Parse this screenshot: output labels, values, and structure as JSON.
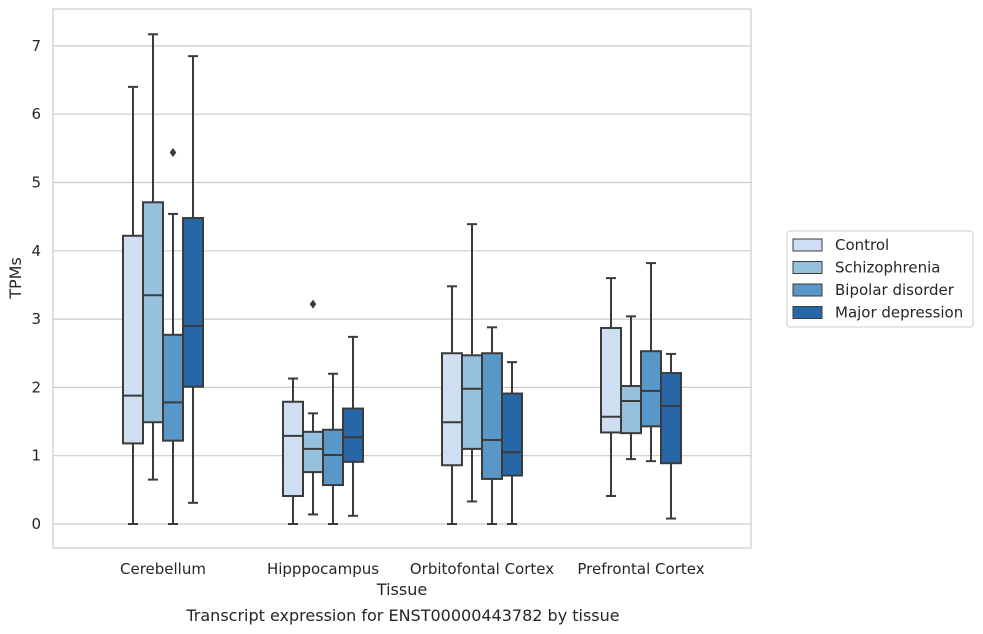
{
  "caption": "Transcript expression for ENST00000443782 by tissue",
  "chart_data": {
    "type": "box",
    "xlabel": "Tissue",
    "ylabel": "TPMs",
    "ylim": [
      -0.35,
      7.55
    ],
    "yticks": [
      0,
      1,
      2,
      3,
      4,
      5,
      6,
      7
    ],
    "grid": "horizontal",
    "legend_position": "right",
    "categories": [
      "Cerebellum",
      "Hipppocampus",
      "Orbitofontal Cortex",
      "Prefrontal Cortex"
    ],
    "series": [
      {
        "name": "Control",
        "color": "#cddff0",
        "boxes": [
          {
            "min": 0.0,
            "q1": 1.18,
            "median": 1.88,
            "q3": 4.22,
            "max": 6.4,
            "outliers": []
          },
          {
            "min": 0.0,
            "q1": 0.41,
            "median": 1.29,
            "q3": 1.79,
            "max": 2.13,
            "outliers": []
          },
          {
            "min": 0.0,
            "q1": 0.86,
            "median": 1.49,
            "q3": 2.5,
            "max": 3.48,
            "outliers": []
          },
          {
            "min": 0.41,
            "q1": 1.34,
            "median": 1.57,
            "q3": 2.87,
            "max": 3.6,
            "outliers": []
          }
        ]
      },
      {
        "name": "Schizophrenia",
        "color": "#96c0de",
        "boxes": [
          {
            "min": 0.65,
            "q1": 1.49,
            "median": 3.35,
            "q3": 4.71,
            "max": 7.17,
            "outliers": []
          },
          {
            "min": 0.14,
            "q1": 0.76,
            "median": 1.1,
            "q3": 1.35,
            "max": 1.62,
            "outliers": [
              3.22
            ]
          },
          {
            "min": 0.33,
            "q1": 1.1,
            "median": 1.98,
            "q3": 2.47,
            "max": 4.39,
            "outliers": []
          },
          {
            "min": 0.95,
            "q1": 1.33,
            "median": 1.8,
            "q3": 2.02,
            "max": 3.04,
            "outliers": []
          }
        ]
      },
      {
        "name": "Bipolar disorder",
        "color": "#5798c8",
        "boxes": [
          {
            "min": 0.0,
            "q1": 1.22,
            "median": 1.78,
            "q3": 2.77,
            "max": 4.54,
            "outliers": [
              5.44
            ]
          },
          {
            "min": 0.0,
            "q1": 0.57,
            "median": 1.01,
            "q3": 1.38,
            "max": 2.2,
            "outliers": []
          },
          {
            "min": 0.0,
            "q1": 0.66,
            "median": 1.23,
            "q3": 2.5,
            "max": 2.88,
            "outliers": []
          },
          {
            "min": 0.92,
            "q1": 1.43,
            "median": 1.95,
            "q3": 2.53,
            "max": 3.82,
            "outliers": []
          }
        ]
      },
      {
        "name": "Major depression",
        "color": "#2767a8",
        "boxes": [
          {
            "min": 0.31,
            "q1": 2.01,
            "median": 2.9,
            "q3": 4.48,
            "max": 6.85,
            "outliers": []
          },
          {
            "min": 0.12,
            "q1": 0.91,
            "median": 1.27,
            "q3": 1.69,
            "max": 2.74,
            "outliers": []
          },
          {
            "min": 0.0,
            "q1": 0.71,
            "median": 1.05,
            "q3": 1.91,
            "max": 2.37,
            "outliers": []
          },
          {
            "min": 0.08,
            "q1": 0.89,
            "median": 1.73,
            "q3": 2.21,
            "max": 2.49,
            "outliers": []
          }
        ]
      }
    ]
  }
}
